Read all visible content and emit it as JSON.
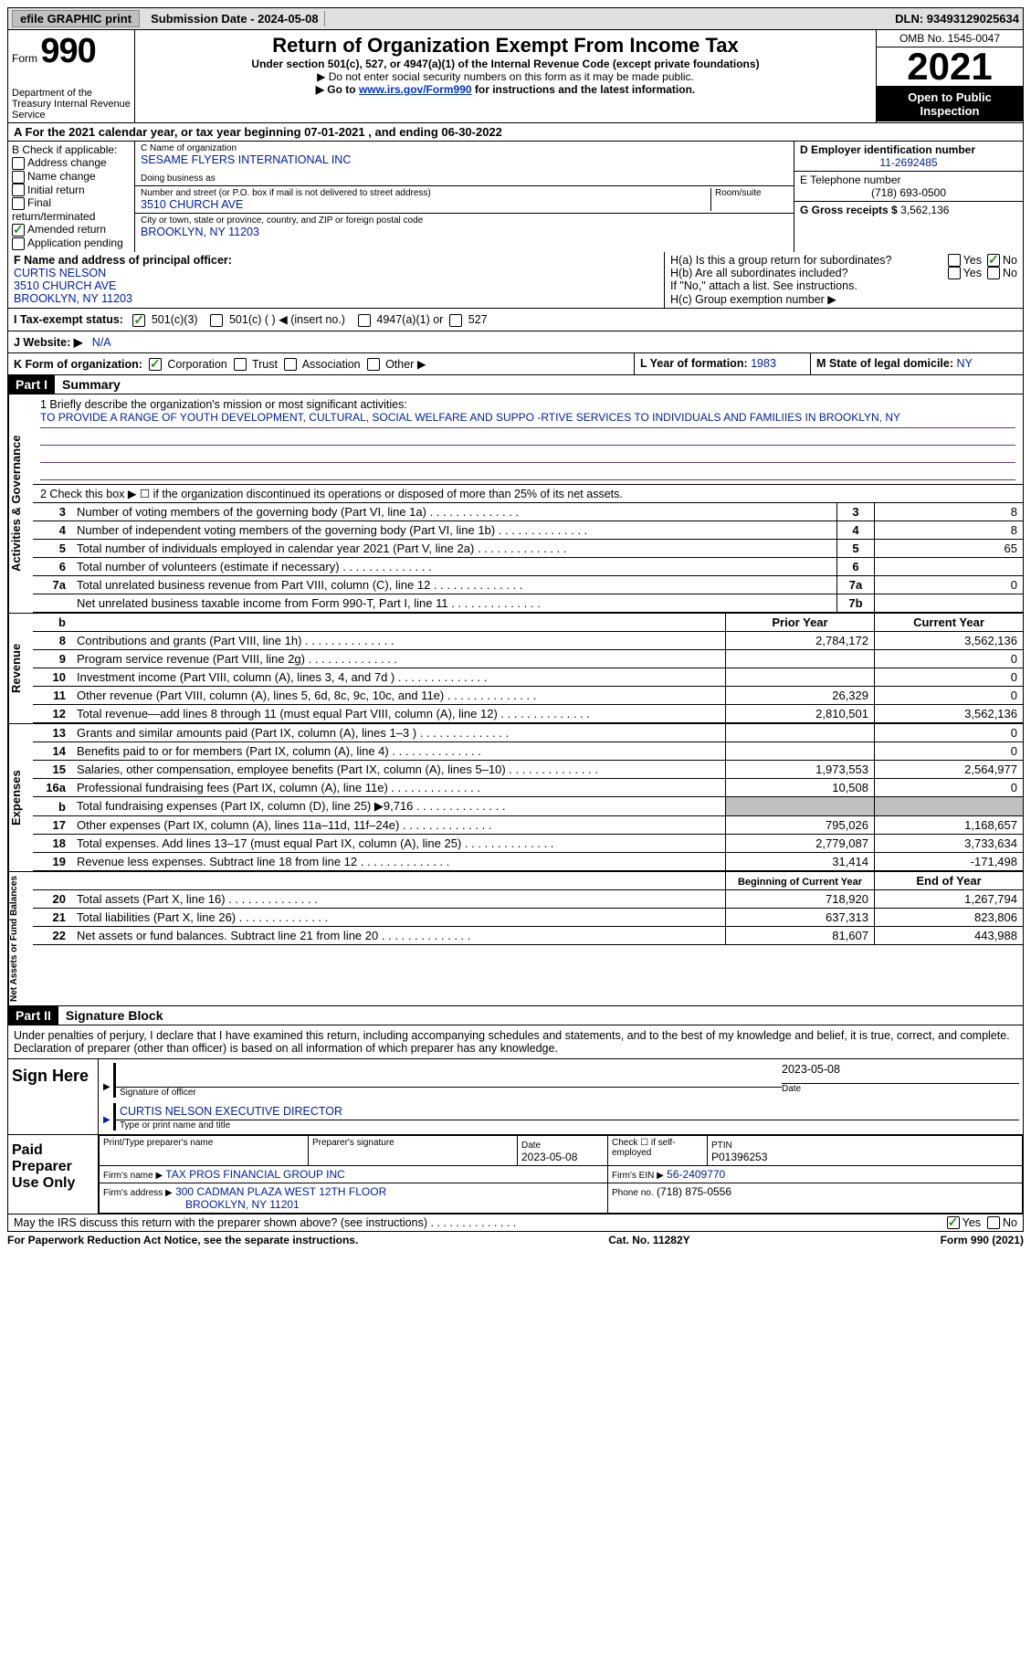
{
  "topbar": {
    "efile_label": "efile GRAPHIC print",
    "submission_label": "Submission Date - 2024-05-08",
    "dln_label": "DLN: 93493129025634"
  },
  "header": {
    "form_label": "Form",
    "form_number": "990",
    "dept": "Department of the Treasury Internal Revenue Service",
    "title": "Return of Organization Exempt From Income Tax",
    "subtitle": "Under section 501(c), 527, or 4947(a)(1) of the Internal Revenue Code (except private foundations)",
    "note1": "▶ Do not enter social security numbers on this form as it may be made public.",
    "note2_pre": "▶ Go to ",
    "note2_link": "www.irs.gov/Form990",
    "note2_post": " for instructions and the latest information.",
    "omb": "OMB No. 1545-0047",
    "year": "2021",
    "open_public": "Open to Public Inspection"
  },
  "line_a": "A For the 2021 calendar year, or tax year beginning 07-01-2021    , and ending 06-30-2022",
  "col_b": {
    "heading": "B Check if applicable:",
    "items": [
      "Address change",
      "Name change",
      "Initial return",
      "Final return/terminated",
      "Amended return",
      "Application pending"
    ],
    "amended_checked": true
  },
  "col_c": {
    "name_label": "C Name of organization",
    "name": "SESAME FLYERS INTERNATIONAL INC",
    "dba_label": "Doing business as",
    "street_label": "Number and street (or P.O. box if mail is not delivered to street address)",
    "room_label": "Room/suite",
    "street": "3510 CHURCH AVE",
    "city_label": "City or town, state or province, country, and ZIP or foreign postal code",
    "city": "BROOKLYN, NY  11203"
  },
  "col_d": {
    "ein_label": "D Employer identification number",
    "ein": "11-2692485",
    "phone_label": "E Telephone number",
    "phone": "(718) 693-0500",
    "gross_label": "G Gross receipts $",
    "gross": "3,562,136"
  },
  "section_f": {
    "label": "F Name and address of principal officer:",
    "name": "CURTIS NELSON",
    "street": "3510 CHURCH AVE",
    "city": "BROOKLYN, NY  11203"
  },
  "section_h": {
    "ha": "H(a)  Is this a group return for subordinates?",
    "hb": "H(b)  Are all subordinates included?",
    "hb_note": "If \"No,\" attach a list. See instructions.",
    "hc": "H(c)  Group exemption number ▶",
    "yes": "Yes",
    "no": "No"
  },
  "row_i": {
    "label": "I  Tax-exempt status:",
    "opt1": "501(c)(3)",
    "opt2": "501(c) (  ) ◀ (insert no.)",
    "opt3": "4947(a)(1) or",
    "opt4": "527"
  },
  "row_j": {
    "label": "J  Website: ▶",
    "value": "N/A"
  },
  "row_k": {
    "label": "K Form of organization:",
    "opts": [
      "Corporation",
      "Trust",
      "Association",
      "Other ▶"
    ],
    "l_label": "L Year of formation:",
    "l_val": "1983",
    "m_label": "M State of legal domicile:",
    "m_val": "NY"
  },
  "part1": {
    "header": "Part I",
    "title": "Summary"
  },
  "mission": {
    "q": "1   Briefly describe the organization's mission or most significant activities:",
    "text": "TO PROVIDE A RANGE OF YOUTH DEVELOPMENT, CULTURAL, SOCIAL WELFARE AND SUPPO -RTIVE SERVICES TO INDIVIDUALS AND FAMILIIES IN BROOKLYN, NY"
  },
  "line2": "2   Check this box ▶ ☐  if the organization discontinued its operations or disposed of more than 25% of its net assets.",
  "gov_rows": [
    {
      "n": "3",
      "label": "Number of voting members of the governing body (Part VI, line 1a)",
      "box": "3",
      "val": "8"
    },
    {
      "n": "4",
      "label": "Number of independent voting members of the governing body (Part VI, line 1b)",
      "box": "4",
      "val": "8"
    },
    {
      "n": "5",
      "label": "Total number of individuals employed in calendar year 2021 (Part V, line 2a)",
      "box": "5",
      "val": "65"
    },
    {
      "n": "6",
      "label": "Total number of volunteers (estimate if necessary)",
      "box": "6",
      "val": ""
    },
    {
      "n": "7a",
      "label": "Total unrelated business revenue from Part VIII, column (C), line 12",
      "box": "7a",
      "val": "0"
    },
    {
      "n": "",
      "label": "Net unrelated business taxable income from Form 990-T, Part I, line 11",
      "box": "7b",
      "val": ""
    }
  ],
  "side_labels": {
    "governance": "Activities & Governance",
    "revenue": "Revenue",
    "expenses": "Expenses",
    "netassets": "Net Assets or Fund Balances"
  },
  "cols": {
    "prior": "Prior Year",
    "current": "Current Year",
    "begin": "Beginning of Current Year",
    "end": "End of Year"
  },
  "revenue_rows": [
    {
      "n": "8",
      "label": "Contributions and grants (Part VIII, line 1h)",
      "prior": "2,784,172",
      "cur": "3,562,136"
    },
    {
      "n": "9",
      "label": "Program service revenue (Part VIII, line 2g)",
      "prior": "",
      "cur": "0"
    },
    {
      "n": "10",
      "label": "Investment income (Part VIII, column (A), lines 3, 4, and 7d )",
      "prior": "",
      "cur": "0"
    },
    {
      "n": "11",
      "label": "Other revenue (Part VIII, column (A), lines 5, 6d, 8c, 9c, 10c, and 11e)",
      "prior": "26,329",
      "cur": "0"
    },
    {
      "n": "12",
      "label": "Total revenue—add lines 8 through 11 (must equal Part VIII, column (A), line 12)",
      "prior": "2,810,501",
      "cur": "3,562,136"
    }
  ],
  "expense_rows": [
    {
      "n": "13",
      "label": "Grants and similar amounts paid (Part IX, column (A), lines 1–3 )",
      "prior": "",
      "cur": "0"
    },
    {
      "n": "14",
      "label": "Benefits paid to or for members (Part IX, column (A), line 4)",
      "prior": "",
      "cur": "0"
    },
    {
      "n": "15",
      "label": "Salaries, other compensation, employee benefits (Part IX, column (A), lines 5–10)",
      "prior": "1,973,553",
      "cur": "2,564,977"
    },
    {
      "n": "16a",
      "label": "Professional fundraising fees (Part IX, column (A), line 11e)",
      "prior": "10,508",
      "cur": "0"
    },
    {
      "n": "b",
      "label": "Total fundraising expenses (Part IX, column (D), line 25) ▶9,716",
      "prior": "GREY",
      "cur": "GREY"
    },
    {
      "n": "17",
      "label": "Other expenses (Part IX, column (A), lines 11a–11d, 11f–24e)",
      "prior": "795,026",
      "cur": "1,168,657"
    },
    {
      "n": "18",
      "label": "Total expenses. Add lines 13–17 (must equal Part IX, column (A), line 25)",
      "prior": "2,779,087",
      "cur": "3,733,634"
    },
    {
      "n": "19",
      "label": "Revenue less expenses. Subtract line 18 from line 12",
      "prior": "31,414",
      "cur": "-171,498"
    }
  ],
  "net_rows": [
    {
      "n": "20",
      "label": "Total assets (Part X, line 16)",
      "prior": "718,920",
      "cur": "1,267,794"
    },
    {
      "n": "21",
      "label": "Total liabilities (Part X, line 26)",
      "prior": "637,313",
      "cur": "823,806"
    },
    {
      "n": "22",
      "label": "Net assets or fund balances. Subtract line 21 from line 20",
      "prior": "81,607",
      "cur": "443,988"
    }
  ],
  "part2": {
    "header": "Part II",
    "title": "Signature Block"
  },
  "penalty": "Under penalties of perjury, I declare that I have examined this return, including accompanying schedules and statements, and to the best of my knowledge and belief, it is true, correct, and complete. Declaration of preparer (other than officer) is based on all information of which preparer has any knowledge.",
  "sign": {
    "here": "Sign Here",
    "sig_label": "Signature of officer",
    "date": "2023-05-08",
    "date_label": "Date",
    "name": "CURTIS NELSON  EXECUTIVE DIRECTOR",
    "name_label": "Type or print name and title"
  },
  "preparer": {
    "title": "Paid Preparer Use Only",
    "print_label": "Print/Type preparer's name",
    "sig_label": "Preparer's signature",
    "date_label": "Date",
    "date": "2023-05-08",
    "check_label": "Check ☐ if self-employed",
    "ptin_label": "PTIN",
    "ptin": "P01396253",
    "firm_name_label": "Firm's name    ▶",
    "firm_name": "TAX PROS FINANCIAL GROUP INC",
    "firm_ein_label": "Firm's EIN ▶",
    "firm_ein": "56-2409770",
    "firm_addr_label": "Firm's address ▶",
    "firm_addr1": "300 CADMAN PLAZA WEST 12TH FLOOR",
    "firm_addr2": "BROOKLYN, NY  11201",
    "phone_label": "Phone no.",
    "phone": "(718) 875-0556"
  },
  "discuss": "May the IRS discuss this return with the preparer shown above? (see instructions)",
  "footer": {
    "left": "For Paperwork Reduction Act Notice, see the separate instructions.",
    "center": "Cat. No. 11282Y",
    "right": "Form 990 (2021)"
  }
}
